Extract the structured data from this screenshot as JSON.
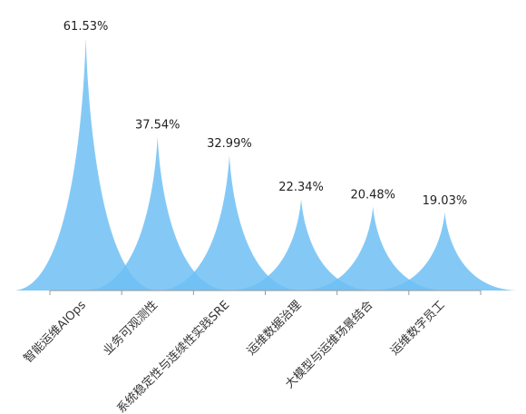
{
  "chart_data": {
    "type": "bar",
    "subtype": "pictorial-spike",
    "categories": [
      "智能运维AIOps",
      "业务可观测性",
      "系统稳定性与连续性实践SRE",
      "运维数据治理",
      "大模型与运维场景结合",
      "运维数字员工"
    ],
    "values": [
      61.53,
      37.54,
      32.99,
      22.34,
      20.48,
      19.03
    ],
    "value_labels": [
      "61.53%",
      "37.54%",
      "32.99%",
      "22.34%",
      "20.48%",
      "19.03%"
    ],
    "ylim": [
      0,
      61.53
    ],
    "grid": false,
    "legend": "none",
    "fill_color": "#6ebff5",
    "overlap_color": "#4fa8ea",
    "axis_color": "#999999"
  }
}
